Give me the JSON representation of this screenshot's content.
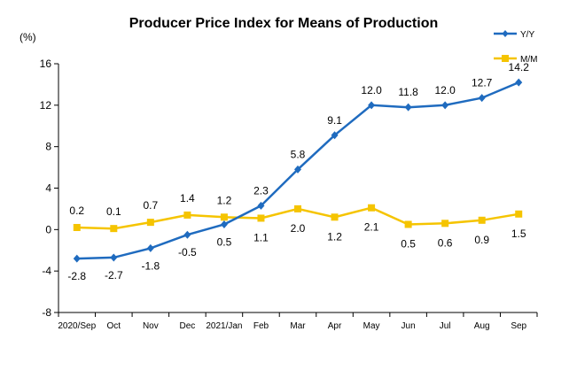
{
  "chart_data": {
    "type": "line",
    "title": "Producer Price Index for Means of Production",
    "unit_label": "(%)",
    "xlabel": "",
    "ylabel": "",
    "ylim": [
      -8,
      16
    ],
    "yticks": [
      -8,
      -4,
      0,
      4,
      8,
      12,
      16
    ],
    "categories": [
      "2020/Sep",
      "Oct",
      "Nov",
      "Dec",
      "2021/Jan",
      "Feb",
      "Mar",
      "Apr",
      "May",
      "Jun",
      "Jul",
      "Aug",
      "Sep"
    ],
    "legend_placement": "top-right",
    "grid": false,
    "series": [
      {
        "name": "Y/Y",
        "color": "#1f6bbf",
        "marker": "diamond",
        "values": [
          -2.8,
          -2.7,
          -1.8,
          -0.5,
          0.5,
          2.3,
          5.8,
          9.1,
          12.0,
          11.8,
          12.0,
          12.7,
          14.2
        ],
        "labels": [
          "-2.8",
          "-2.7",
          "-1.8",
          "-0.5",
          "0.5",
          "2.3",
          "5.8",
          "9.1",
          "12.0",
          "11.8",
          "12.0",
          "12.7",
          "14.2"
        ],
        "label_pos": [
          "below",
          "below",
          "below",
          "below",
          "below",
          "above",
          "above",
          "above",
          "above",
          "above",
          "above",
          "above",
          "above"
        ]
      },
      {
        "name": "M/M",
        "color": "#f5c400",
        "marker": "square",
        "values": [
          0.2,
          0.1,
          0.7,
          1.4,
          1.2,
          1.1,
          2.0,
          1.2,
          2.1,
          0.5,
          0.6,
          0.9,
          1.5
        ],
        "labels": [
          "0.2",
          "0.1",
          "0.7",
          "1.4",
          "1.2",
          "1.1",
          "2.0",
          "1.2",
          "2.1",
          "0.5",
          "0.6",
          "0.9",
          "1.5"
        ],
        "label_pos": [
          "above",
          "above",
          "above",
          "above",
          "above",
          "below",
          "below",
          "below",
          "below",
          "below",
          "below",
          "below",
          "below"
        ]
      }
    ]
  }
}
